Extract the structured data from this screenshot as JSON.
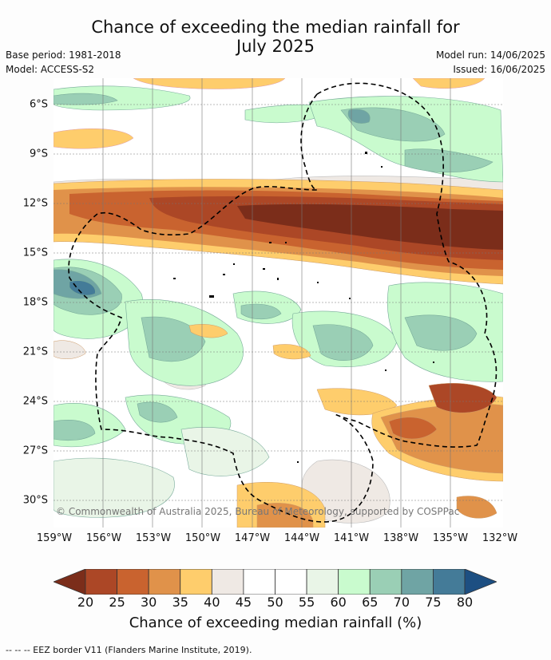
{
  "title_line1": "Chance of exceeding the median rainfall for",
  "title_line2": "July 2025",
  "base_period": "Base period: 1981-2018",
  "model": "Model: ACCESS-S2",
  "model_run": "Model run: 14/06/2025",
  "issued": "Issued: 16/06/2025",
  "lat_labels": [
    "6°S",
    "9°S",
    "12°S",
    "15°S",
    "18°S",
    "21°S",
    "24°S",
    "27°S",
    "30°S"
  ],
  "lon_labels": [
    "159°W",
    "156°W",
    "153°W",
    "150°W",
    "147°W",
    "144°W",
    "141°W",
    "138°W",
    "135°W",
    "132°W"
  ],
  "copyright": "© Commonwealth of Australia 2025, Bureau of Meteorology, supported by COSPPac",
  "colorbar": {
    "ticks": [
      "20",
      "25",
      "30",
      "35",
      "40",
      "45",
      "50",
      "55",
      "60",
      "65",
      "70",
      "75",
      "80"
    ],
    "colors": [
      "#7b2d1a",
      "#ac4726",
      "#c9632f",
      "#e0924a",
      "#fecd6c",
      "#efe9e4",
      "#ffffff",
      "#ffffff",
      "#e9f5e7",
      "#c9fbce",
      "#9acfb5",
      "#6fa4a4",
      "#447b98",
      "#1d4f82"
    ],
    "title": "Chance of exceeding median rainfall (%)"
  },
  "footer": "--  --  -- EEZ border V11 (Flanders Marine Institute, 2019)."
}
